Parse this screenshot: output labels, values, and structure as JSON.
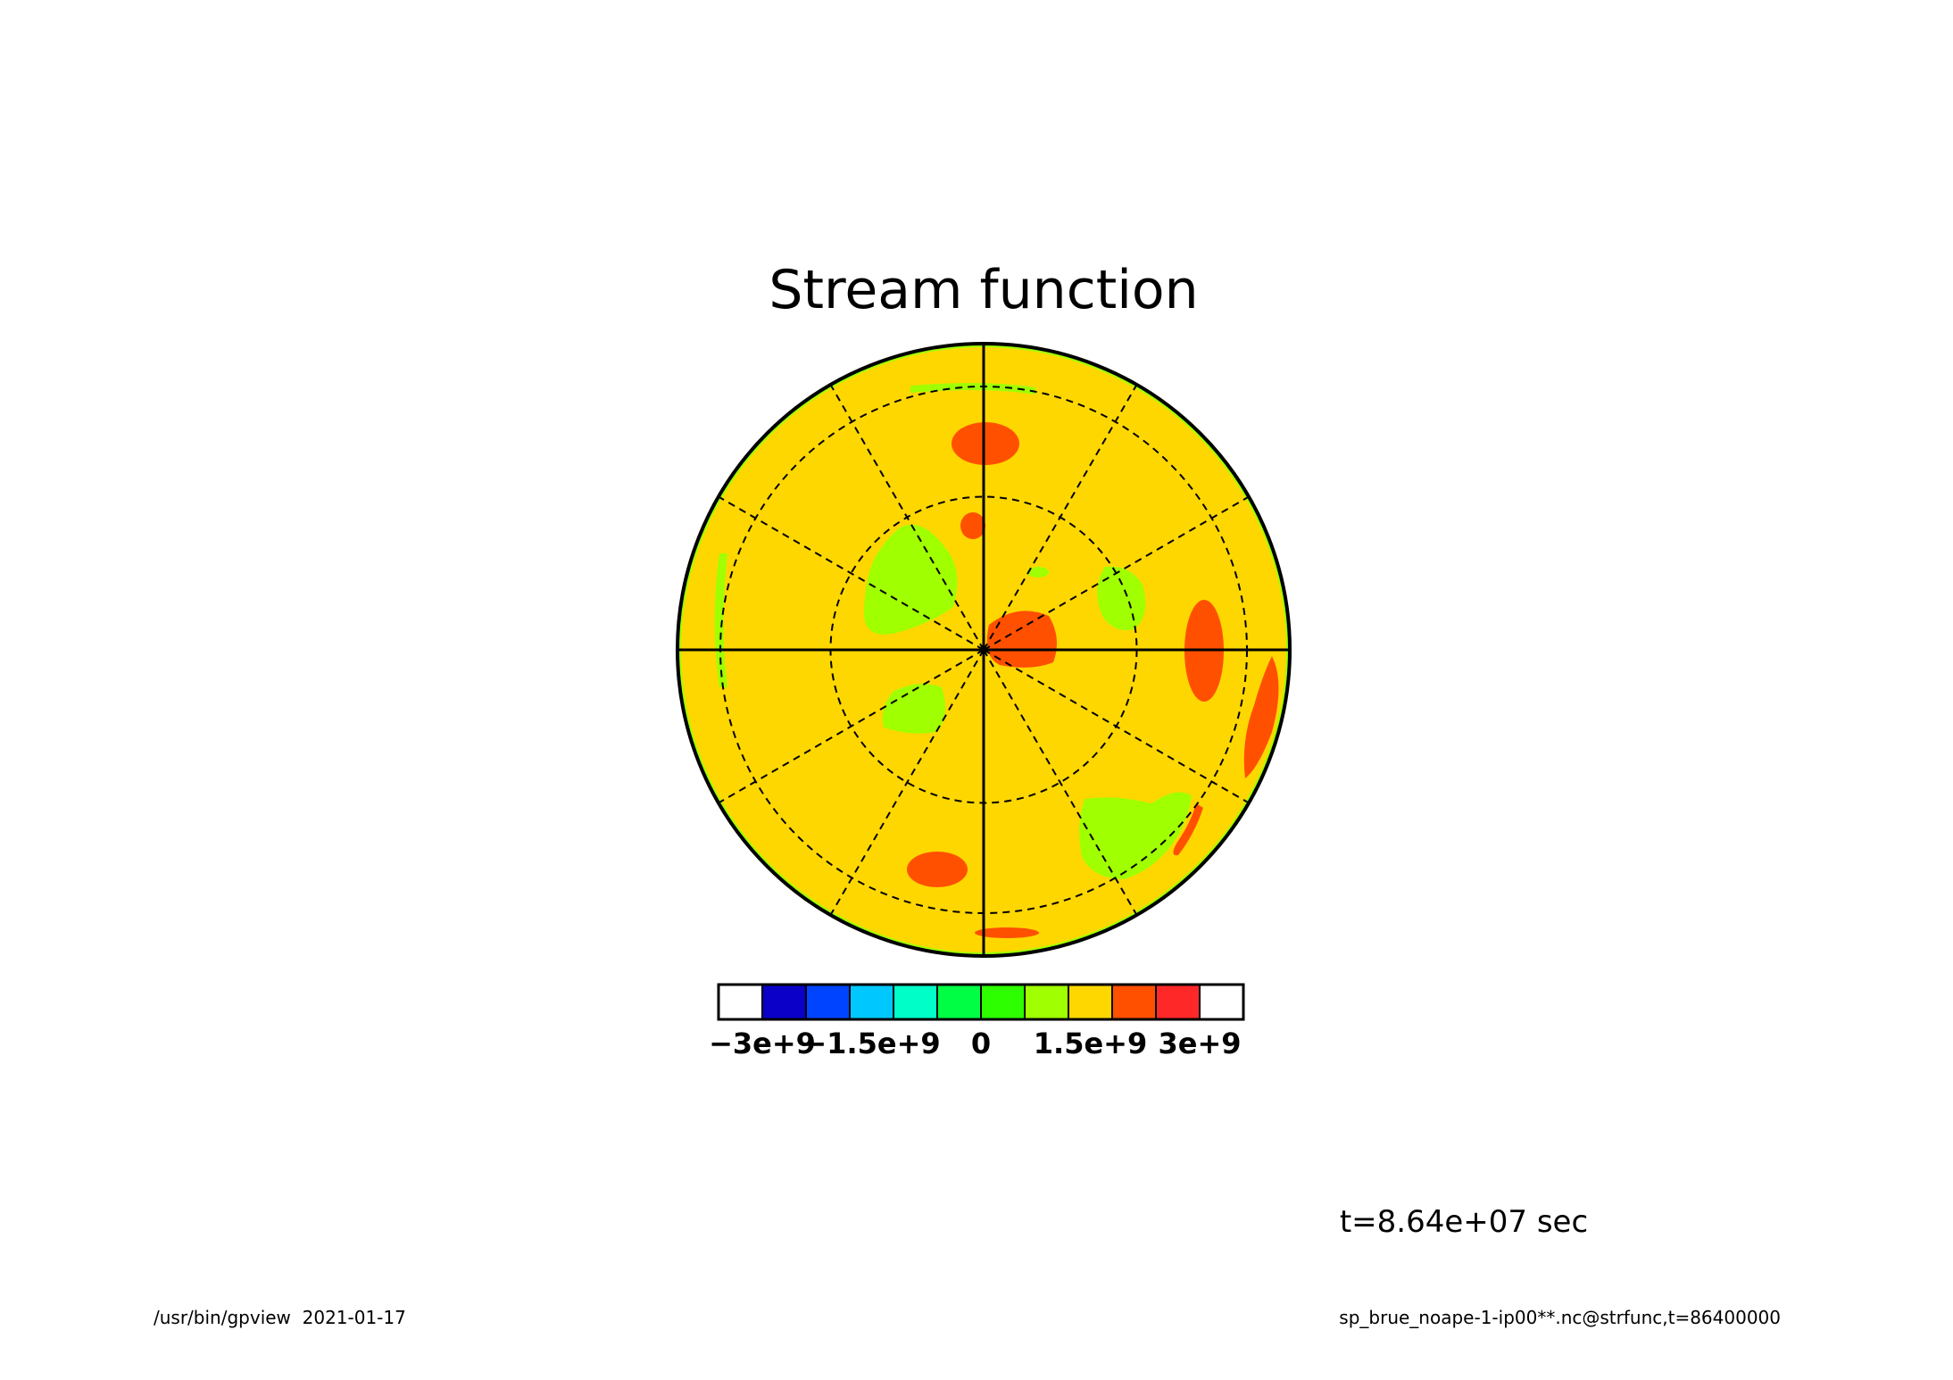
{
  "chart_data": {
    "type": "heatmap",
    "projection": "polar-stereographic",
    "title": "Stream function",
    "time_label": "t=8.64e+07 sec",
    "colorbar": {
      "colors": [
        "#ffffff",
        "#0a00c8",
        "#0044ff",
        "#00c8ff",
        "#00ffc8",
        "#00ff44",
        "#2dff00",
        "#a0ff00",
        "#ffd700",
        "#ff5000",
        "#ff2828",
        "#ffffff"
      ],
      "tick_labels": [
        "−3e+9",
        "−1.5e+9",
        "0",
        "1.5e+9",
        "3e+9"
      ],
      "tick_values": [
        -3000000000.0,
        -1500000000.0,
        0,
        1500000000.0,
        3000000000.0
      ],
      "range": [
        -3000000000.0,
        3000000000.0
      ],
      "levels": 10
    },
    "field": {
      "background_color": "#ffd700",
      "rim_color": "#a0ff00",
      "contour_circles_fraction": [
        0.5,
        0.86
      ]
    }
  },
  "footer": {
    "left": "/usr/bin/gpview  2021-01-17",
    "right": "sp_brue_noape-1-ip00**.nc@strfunc,t=86400000"
  }
}
